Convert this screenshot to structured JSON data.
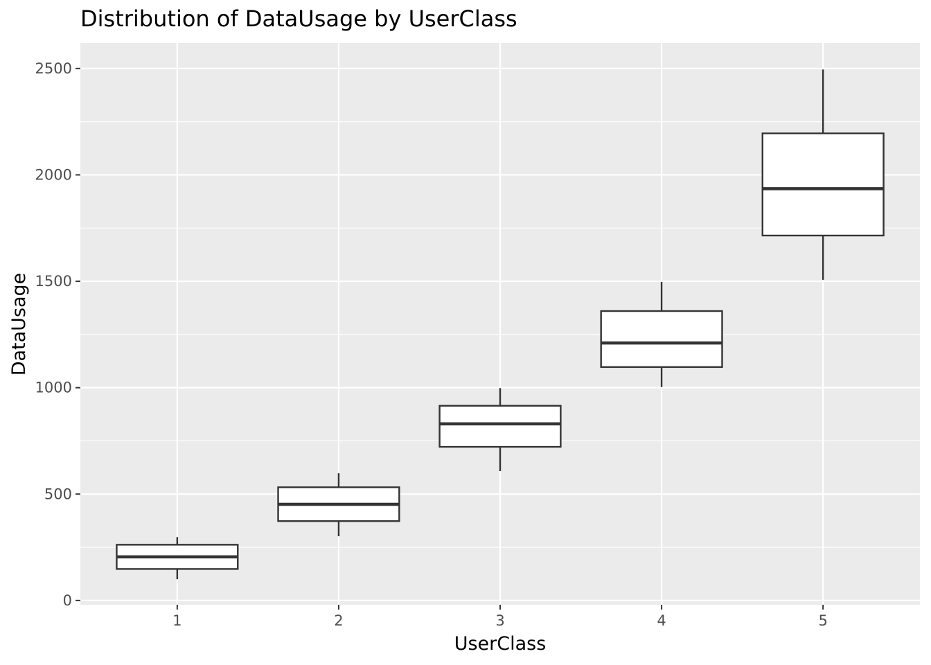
{
  "chart_data": {
    "type": "boxplot",
    "title": "Distribution of  DataUsage  by  UserClass",
    "xlabel": "UserClass",
    "ylabel": "DataUsage",
    "ylim": [
      -20,
      2620
    ],
    "yticks": [
      0,
      500,
      1000,
      1500,
      2000,
      2500
    ],
    "ytick_labels": [
      "0",
      "500",
      "1000",
      "1500",
      "2000",
      "2500"
    ],
    "categories": [
      "1",
      "2",
      "3",
      "4",
      "5"
    ],
    "boxes": [
      {
        "category": "1",
        "min": 100,
        "q1": 148,
        "median": 205,
        "q3": 262,
        "max": 298
      },
      {
        "category": "2",
        "min": 302,
        "q1": 373,
        "median": 452,
        "q3": 532,
        "max": 598
      },
      {
        "category": "3",
        "min": 608,
        "q1": 722,
        "median": 830,
        "q3": 915,
        "max": 998
      },
      {
        "category": "4",
        "min": 1003,
        "q1": 1097,
        "median": 1210,
        "q3": 1360,
        "max": 1497
      },
      {
        "category": "5",
        "min": 1507,
        "q1": 1715,
        "median": 1935,
        "q3": 2195,
        "max": 2495
      }
    ],
    "grid": true,
    "legend": "none",
    "colors": {
      "panel": "#ebebeb",
      "grid": "#ffffff",
      "box_fill": "#ffffff",
      "box_line": "#333333"
    }
  }
}
